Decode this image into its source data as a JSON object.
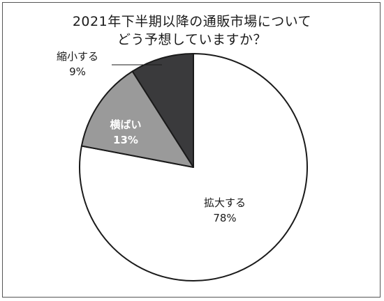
{
  "chart_data": {
    "type": "pie",
    "title_lines": [
      "2021年下半期以降の通販市場について",
      "どう予想していますか？"
    ],
    "slices": [
      {
        "label": "拡大する",
        "value_label": "78%",
        "value": 78,
        "color": "#ffffff",
        "text_color": "#1a1a1a",
        "label_position": "inside"
      },
      {
        "label": "横ばい",
        "value_label": "13%",
        "value": 13,
        "color": "#9a9a9a",
        "text_color": "#ffffff",
        "label_position": "inside"
      },
      {
        "label": "縮小する",
        "value_label": "9%",
        "value": 9,
        "color": "#3a3a3c",
        "text_color": "#1a1a1a",
        "label_position": "outside-with-leader"
      }
    ],
    "start": "12 o'clock",
    "direction": "clockwise",
    "legend": "none"
  }
}
